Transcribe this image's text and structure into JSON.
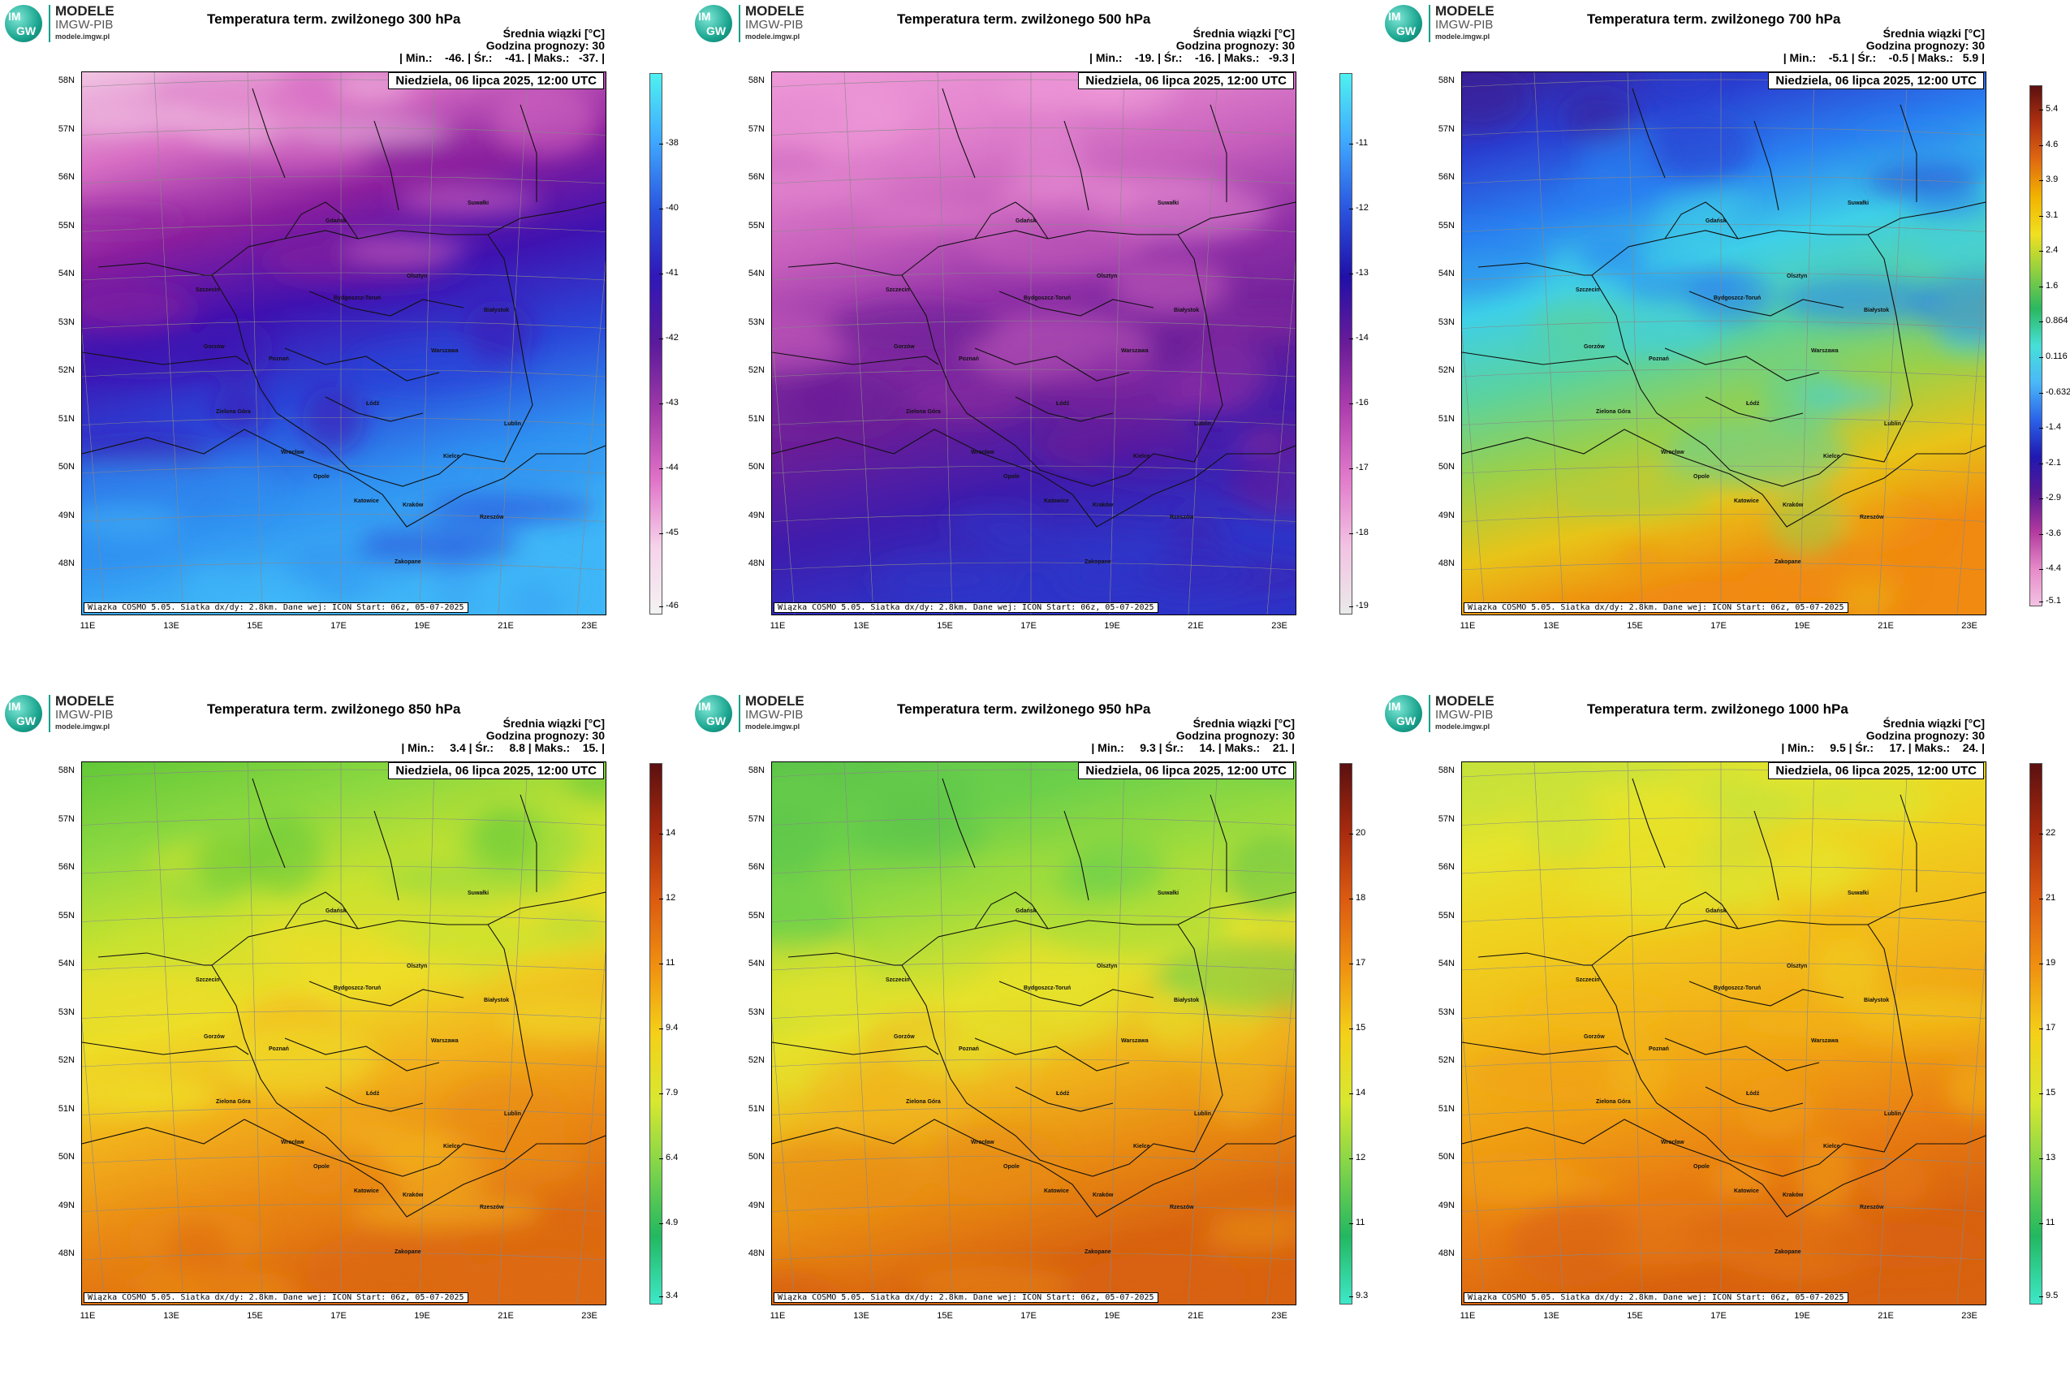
{
  "logo": {
    "line1": "MODELE",
    "line2": "IMGW-PIB",
    "line3": "modele.imgw.pl",
    "badge_top": "IM",
    "badge_bottom": "GW"
  },
  "common": {
    "units": "Średnia wiązki [°C]",
    "forecast_hour": "Godzina prognozy: 30",
    "date": "Niedziela, 06 lipca 2025, 12:00 UTC",
    "footer": "Wiązka COSMO 5.05. Siatka dx/dy: 2.8km. Dane wej: ICON Start: 06z, 05-07-2025",
    "lat_labels": [
      "58N",
      "57N",
      "56N",
      "55N",
      "54N",
      "53N",
      "52N",
      "51N",
      "50N",
      "49N",
      "48N"
    ],
    "lon_labels": [
      "11E",
      "13E",
      "15E",
      "17E",
      "19E",
      "21E",
      "23E"
    ],
    "cities": [
      "Gdańsk",
      "Suwałki",
      "Olsztyn",
      "Szczecin",
      "Bydgoszcz-Toruń",
      "Białystok",
      "Gorzów",
      "Poznań",
      "Warszawa",
      "Zielona Góra",
      "Łódź",
      "Lublin",
      "Wrocław",
      "Kielce",
      "Opole",
      "Katowice",
      "Kraków",
      "Rzeszów",
      "Zakopane"
    ],
    "icons": {
      "logo": "imgw-logo-icon"
    }
  },
  "panels": [
    {
      "title": "Temperatura term. zwilżonego 300 hPa",
      "stats": "| Min.:    -46. | Śr.:    -41. | Maks.:   -37. |",
      "ticks": [
        "-38",
        "-40",
        "-41",
        "-42",
        "-43",
        "-44",
        "-45",
        "-46"
      ],
      "colors": [
        "#4ef1f1",
        "#3fa8ff",
        "#2a55e0",
        "#3018b8",
        "#5b1a9c",
        "#a23aa8",
        "#e071c8",
        "#f6d2ea",
        "#f3f3f3"
      ],
      "map_colors": [
        "#f2c6e3",
        "#d86fc4",
        "#8a1f9e",
        "#3f12b0",
        "#2a46d8",
        "#2f8ff0",
        "#3fb6f7"
      ],
      "legend_range": [
        -46,
        -37
      ]
    },
    {
      "title": "Temperatura term. zwilżonego 500 hPa",
      "stats": "| Min.:    -19. | Śr.:    -16. | Maks.:   -9.3 |",
      "ticks": [
        "-11",
        "-12",
        "-13",
        "-14",
        "-16",
        "-17",
        "-18",
        "-19"
      ],
      "colors": [
        "#4ef1f1",
        "#3fa8ff",
        "#2a55e0",
        "#2010a8",
        "#6a1b9a",
        "#b23fb0",
        "#e27bcb",
        "#f3c2e3",
        "#eaeaea"
      ],
      "map_colors": [
        "#ee9ad8",
        "#e486cf",
        "#c65fbc",
        "#8e2ea6",
        "#6a1e98",
        "#3e1cad",
        "#2e34c8"
      ],
      "legend_range": [
        -19,
        -9.3
      ]
    },
    {
      "title": "Temperatura term. zwilżonego 700 hPa",
      "stats": "| Min.:    -5.1 | Śr.:    -0.5 | Maks.:   5.9 |",
      "ticks": [
        "5.4",
        "4.6",
        "3.9",
        "3.1",
        "2.4",
        "1.6",
        "0.864",
        "0.116",
        "-0.632",
        "-1.4",
        "-2.1",
        "-2.9",
        "-3.6",
        "-4.4",
        "-5.1"
      ],
      "colors": [
        "#5b1010",
        "#b03010",
        "#e06a10",
        "#f2b400",
        "#f0e020",
        "#8fd040",
        "#2ab860",
        "#46e0d8",
        "#4ab8f8",
        "#2a62e8",
        "#2018b0",
        "#5a1896",
        "#b2399e",
        "#e68ac8",
        "#f3c2e3"
      ],
      "map_colors": [
        "#3a1e98",
        "#2a3ed0",
        "#2a80f0",
        "#3ed0e8",
        "#5ad2a0",
        "#9ad04a",
        "#e8c418",
        "#f08a10"
      ],
      "legend_range": [
        -5.1,
        5.9
      ]
    },
    {
      "title": "Temperatura term. zwilżonego 850 hPa",
      "stats": "| Min.:     3.4 | Śr.:     8.8 | Maks.:    15. |",
      "ticks": [
        "14",
        "12",
        "11",
        "9.4",
        "7.9",
        "6.4",
        "4.9",
        "3.4"
      ],
      "colors": [
        "#5b1010",
        "#a82a0e",
        "#dc5a10",
        "#f09010",
        "#f4d018",
        "#d8e830",
        "#7ed44a",
        "#22b860",
        "#3ee8c8"
      ],
      "map_colors": [
        "#62c838",
        "#8cd840",
        "#c8e230",
        "#eede28",
        "#f2b21c",
        "#ea8a14",
        "#dd6a10"
      ],
      "legend_range": [
        3.4,
        15
      ]
    },
    {
      "title": "Temperatura term. zwilżonego 950 hPa",
      "stats": "| Min.:     9.3 | Śr.:     14. | Maks.:    21. |",
      "ticks": [
        "20",
        "18",
        "17",
        "15",
        "14",
        "12",
        "11",
        "9.3"
      ],
      "colors": [
        "#5b1010",
        "#a82a0e",
        "#dc5a10",
        "#f09010",
        "#f4d018",
        "#d8e830",
        "#7ed44a",
        "#22b860",
        "#3ee8c8"
      ],
      "map_colors": [
        "#5cc44a",
        "#6cd04a",
        "#a0dc3c",
        "#e6e22c",
        "#f0b41c",
        "#e88a12",
        "#d8620f"
      ],
      "legend_range": [
        9.3,
        21
      ]
    },
    {
      "title": "Temperatura term. zwilżonego 1000 hPa",
      "stats": "| Min.:     9.5 | Śr.:     17. | Maks.:    24. |",
      "ticks": [
        "22",
        "21",
        "19",
        "17",
        "15",
        "13",
        "11",
        "9.5"
      ],
      "colors": [
        "#5b1010",
        "#a82a0e",
        "#dc5a10",
        "#f09010",
        "#f4d018",
        "#d8e830",
        "#7ed44a",
        "#22b860",
        "#3ee8c8"
      ],
      "map_colors": [
        "#c4e23c",
        "#e6e42c",
        "#f0d01e",
        "#f2b81a",
        "#f0a014",
        "#e87c12",
        "#d8620f"
      ],
      "legend_range": [
        9.5,
        24
      ]
    }
  ]
}
